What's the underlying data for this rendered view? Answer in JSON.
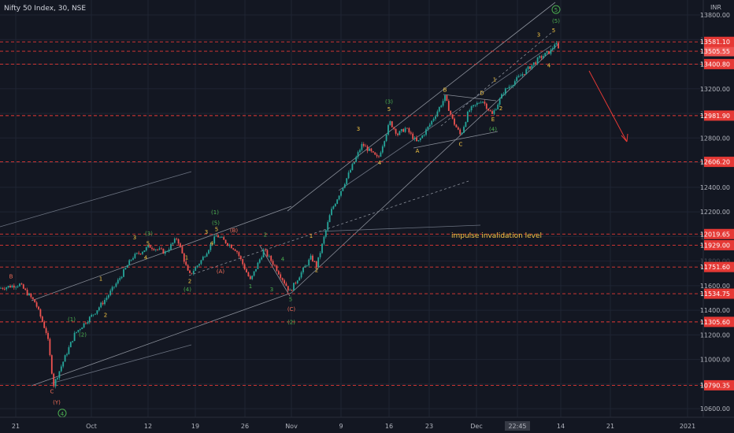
{
  "header": {
    "title": "Nifty 50 Index, 30, NSE",
    "currency": "INR"
  },
  "colors": {
    "background": "#131722",
    "up": "#26a69a",
    "down": "#ef5350",
    "level": "#e53935",
    "channel": "#9aa0ac",
    "primary_label": "#4caf50",
    "intermediate_label": "#26c6da",
    "minor_label": "#f4c542",
    "corrective_label": "#ef6c57",
    "axis_text": "#b2b5be"
  },
  "chart_data": {
    "type": "candlestick",
    "title": "Nifty 50 Index, 30, NSE",
    "ylim": [
      10540,
      13860
    ],
    "x_ticks": [
      "21",
      "Oct",
      "12",
      "19",
      "26",
      "Nov",
      "9",
      "16",
      "23",
      "Dec",
      "22:45",
      "14",
      "21",
      "2021"
    ],
    "y_ticks": [
      10600,
      10800,
      11000,
      11200,
      11400,
      11600,
      11800,
      12000,
      12200,
      12400,
      12600,
      12800,
      13000,
      13200,
      13400,
      13600,
      13800
    ],
    "price_levels": [
      10790.35,
      11305.6,
      11534.75,
      11751.6,
      11929.0,
      12019.65,
      12606.2,
      12981.9,
      13400.8,
      13505.55,
      13581.1
    ],
    "last_price": 13505.55,
    "price_path": [
      [
        0,
        11580
      ],
      [
        25,
        11610
      ],
      [
        45,
        11460
      ],
      [
        60,
        11200
      ],
      [
        68,
        10790
      ],
      [
        80,
        10980
      ],
      [
        95,
        11210
      ],
      [
        108,
        11300
      ],
      [
        120,
        11380
      ],
      [
        135,
        11500
      ],
      [
        150,
        11640
      ],
      [
        168,
        11830
      ],
      [
        190,
        11920
      ],
      [
        210,
        11870
      ],
      [
        225,
        11990
      ],
      [
        240,
        11680
      ],
      [
        255,
        11800
      ],
      [
        275,
        12010
      ],
      [
        300,
        11890
      ],
      [
        318,
        11640
      ],
      [
        335,
        11890
      ],
      [
        350,
        11750
      ],
      [
        368,
        11550
      ],
      [
        380,
        11680
      ],
      [
        395,
        11830
      ],
      [
        402,
        11760
      ],
      [
        420,
        12200
      ],
      [
        440,
        12470
      ],
      [
        460,
        12750
      ],
      [
        480,
        12630
      ],
      [
        495,
        12930
      ],
      [
        505,
        12830
      ],
      [
        515,
        12880
      ],
      [
        530,
        12760
      ],
      [
        545,
        12900
      ],
      [
        565,
        13130
      ],
      [
        575,
        12940
      ],
      [
        585,
        12820
      ],
      [
        595,
        13020
      ],
      [
        612,
        13110
      ],
      [
        625,
        12990
      ],
      [
        640,
        13180
      ],
      [
        660,
        13300
      ],
      [
        685,
        13450
      ],
      [
        700,
        13510
      ],
      [
        705,
        13580
      ],
      [
        710,
        13505
      ]
    ],
    "wave_labels": [
      {
        "text": "B",
        "x": 14,
        "price": 11660,
        "style": "corrective"
      },
      {
        "text": "C",
        "x": 66,
        "price": 10725,
        "style": "corrective"
      },
      {
        "text": "(Y)",
        "x": 72,
        "price": 10635,
        "style": "corrective"
      },
      {
        "text": "4",
        "x": 79,
        "price": 10545,
        "style": "primary",
        "circled": true
      },
      {
        "text": "(1)",
        "x": 91,
        "price": 11310,
        "style": "primary"
      },
      {
        "text": "(2)",
        "x": 105,
        "price": 11185,
        "style": "primary"
      },
      {
        "text": "1",
        "x": 128,
        "price": 11640,
        "style": "minor"
      },
      {
        "text": "2",
        "x": 134,
        "price": 11345,
        "style": "minor"
      },
      {
        "text": "3",
        "x": 171,
        "price": 11975,
        "style": "minor"
      },
      {
        "text": "4",
        "x": 185,
        "price": 11815,
        "style": "minor"
      },
      {
        "text": "5",
        "x": 188,
        "price": 11930,
        "style": "minor"
      },
      {
        "text": "(3)",
        "x": 189,
        "price": 12010,
        "style": "primary"
      },
      {
        "text": "1",
        "x": 237,
        "price": 11815,
        "style": "minor"
      },
      {
        "text": "2",
        "x": 241,
        "price": 11620,
        "style": "minor"
      },
      {
        "text": "(4)",
        "x": 238,
        "price": 11555,
        "style": "primary"
      },
      {
        "text": "3",
        "x": 262,
        "price": 12020,
        "style": "minor"
      },
      {
        "text": "4",
        "x": 269,
        "price": 11930,
        "style": "minor"
      },
      {
        "text": "(1)",
        "x": 273,
        "price": 12180,
        "style": "primary"
      },
      {
        "text": "(5)",
        "x": 274,
        "price": 12095,
        "style": "primary"
      },
      {
        "text": "5",
        "x": 275,
        "price": 12045,
        "style": "minor"
      },
      {
        "text": "(B)",
        "x": 297,
        "price": 12035,
        "style": "corrective"
      },
      {
        "text": "(A)",
        "x": 280,
        "price": 11700,
        "style": "corrective"
      },
      {
        "text": "1",
        "x": 318,
        "price": 11580,
        "style": "primary"
      },
      {
        "text": "2",
        "x": 337,
        "price": 12000,
        "style": "primary"
      },
      {
        "text": "3",
        "x": 345,
        "price": 11555,
        "style": "primary"
      },
      {
        "text": "4",
        "x": 359,
        "price": 11800,
        "style": "primary"
      },
      {
        "text": "5",
        "x": 369,
        "price": 11475,
        "style": "primary"
      },
      {
        "text": "(C)",
        "x": 370,
        "price": 11395,
        "style": "corrective"
      },
      {
        "text": "(2)",
        "x": 370,
        "price": 11290,
        "style": "primary"
      },
      {
        "text": "1",
        "x": 395,
        "price": 11990,
        "style": "minor"
      },
      {
        "text": "2",
        "x": 402,
        "price": 11710,
        "style": "minor"
      },
      {
        "text": "3",
        "x": 455,
        "price": 12860,
        "style": "minor"
      },
      {
        "text": "(3)",
        "x": 494,
        "price": 13080,
        "style": "primary"
      },
      {
        "text": "5",
        "x": 494,
        "price": 13020,
        "style": "minor"
      },
      {
        "text": "4",
        "x": 482,
        "price": 12585,
        "style": "minor"
      },
      {
        "text": "A",
        "x": 530,
        "price": 12680,
        "style": "minor"
      },
      {
        "text": "B",
        "x": 565,
        "price": 13175,
        "style": "minor"
      },
      {
        "text": "C",
        "x": 585,
        "price": 12735,
        "style": "minor"
      },
      {
        "text": "D",
        "x": 612,
        "price": 13150,
        "style": "minor"
      },
      {
        "text": "E",
        "x": 626,
        "price": 12935,
        "style": "minor"
      },
      {
        "text": "(4)",
        "x": 626,
        "price": 12855,
        "style": "primary"
      },
      {
        "text": "1",
        "x": 628,
        "price": 13260,
        "style": "minor"
      },
      {
        "text": "2",
        "x": 636,
        "price": 13025,
        "style": "minor"
      },
      {
        "text": "3",
        "x": 684,
        "price": 13625,
        "style": "minor"
      },
      {
        "text": "4",
        "x": 697,
        "price": 13375,
        "style": "minor"
      },
      {
        "text": "5",
        "x": 703,
        "price": 13660,
        "style": "minor"
      },
      {
        "text": "(5)",
        "x": 706,
        "price": 13735,
        "style": "primary"
      },
      {
        "text": "5",
        "x": 706,
        "price": 13825,
        "style": "primary",
        "circled": true
      }
    ],
    "annotations": [
      {
        "text": "impulse invalidation level",
        "x": 573,
        "price": 11990
      }
    ]
  }
}
